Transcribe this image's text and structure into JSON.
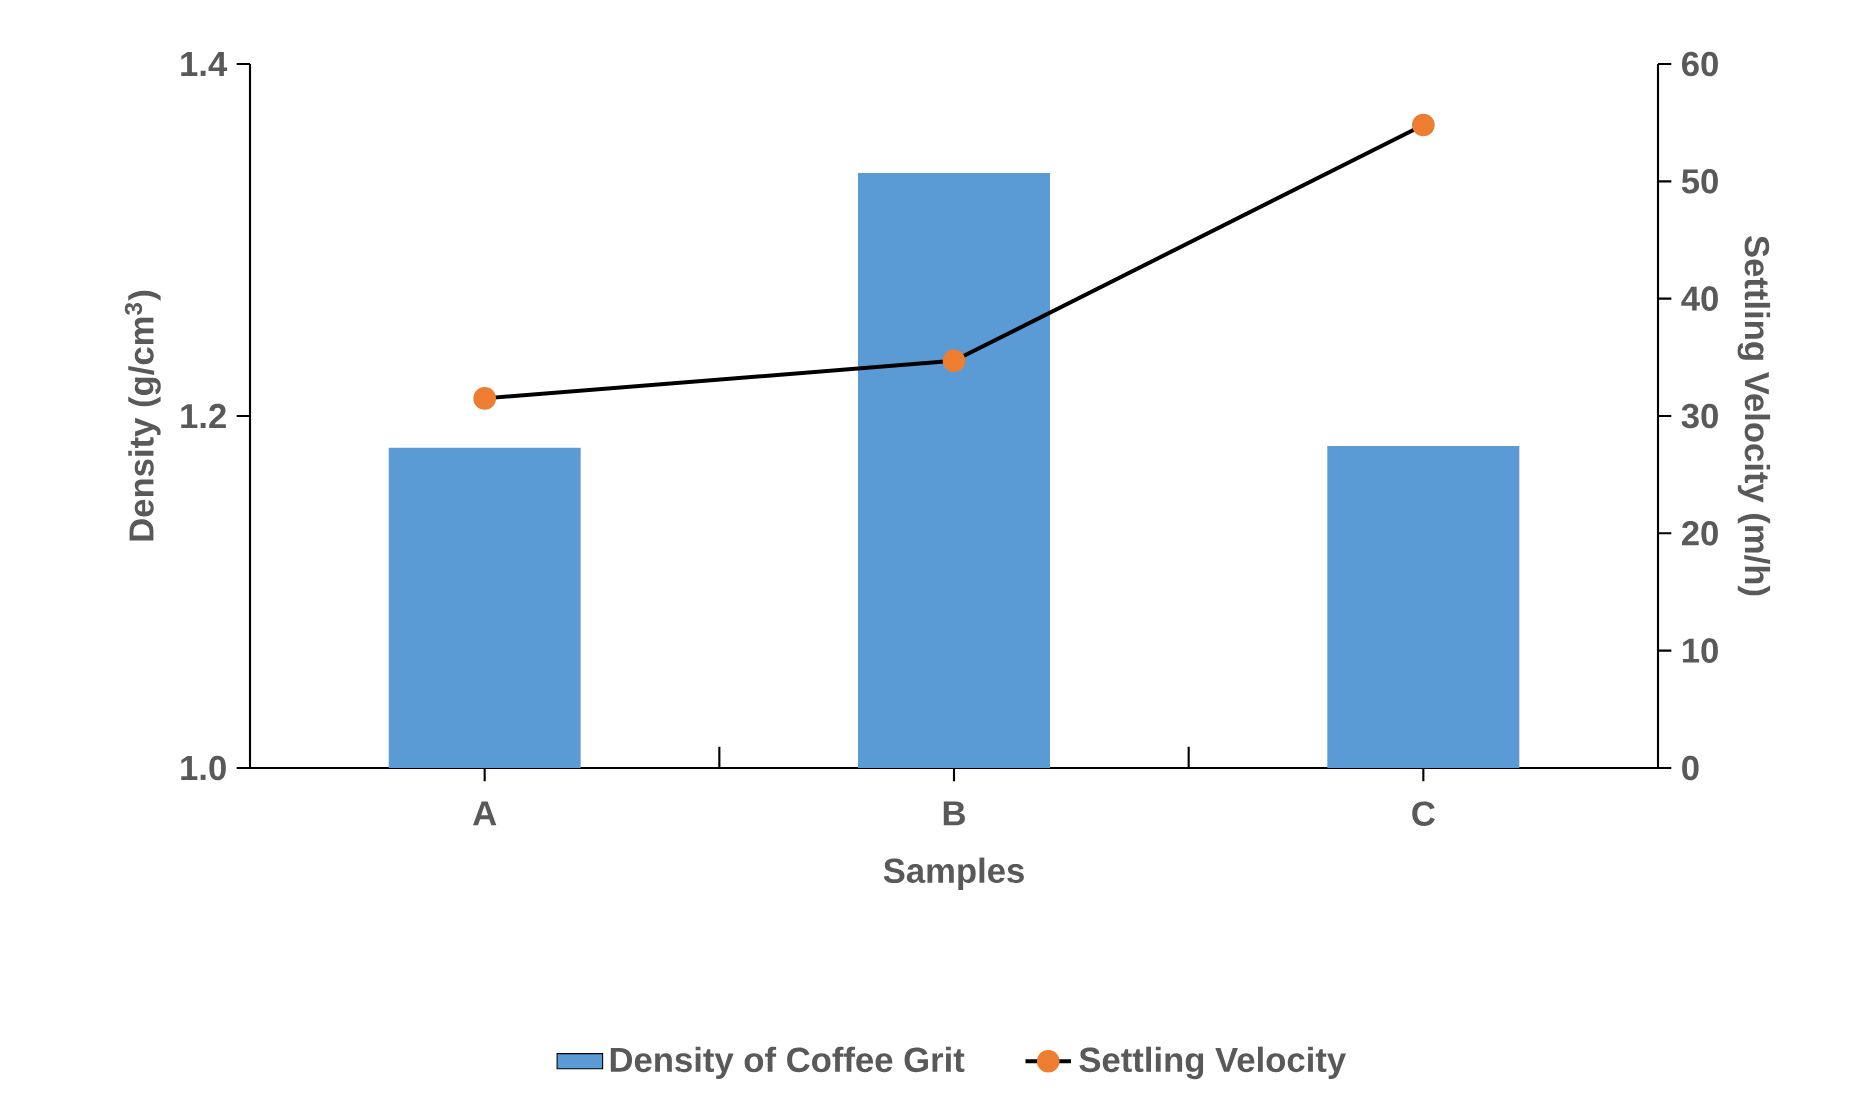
{
  "chart_data": {
    "type": "bar",
    "xlabel": "Samples",
    "ylabel": "Density (g/cm$^{3}$)",
    "y2label": "Settling Velocity (m/h)",
    "categories": [
      "A",
      "B",
      "C"
    ],
    "ylim": [
      1.0,
      1.4
    ],
    "yticks": [
      {
        "value": 1.0,
        "label": "1.0"
      },
      {
        "value": 1.2,
        "label": "1.2"
      },
      {
        "value": 1.4,
        "label": "1.4"
      }
    ],
    "y2lim": [
      0,
      60
    ],
    "y2ticks": [
      0,
      10,
      20,
      30,
      40,
      50,
      60
    ],
    "legend": "bottom",
    "marker": "circle",
    "line_style": "solid",
    "series": [
      {
        "name": "Density of Coffee Grit",
        "type": "bar",
        "color": "#5b9bd5",
        "values": [
          1.182,
          1.338,
          1.183
        ]
      },
      {
        "name": "Settling Velocity",
        "type": "line",
        "axis": "y2",
        "color": "#ed7d31",
        "values": [
          31.5,
          34.7,
          54.8
        ]
      }
    ]
  }
}
